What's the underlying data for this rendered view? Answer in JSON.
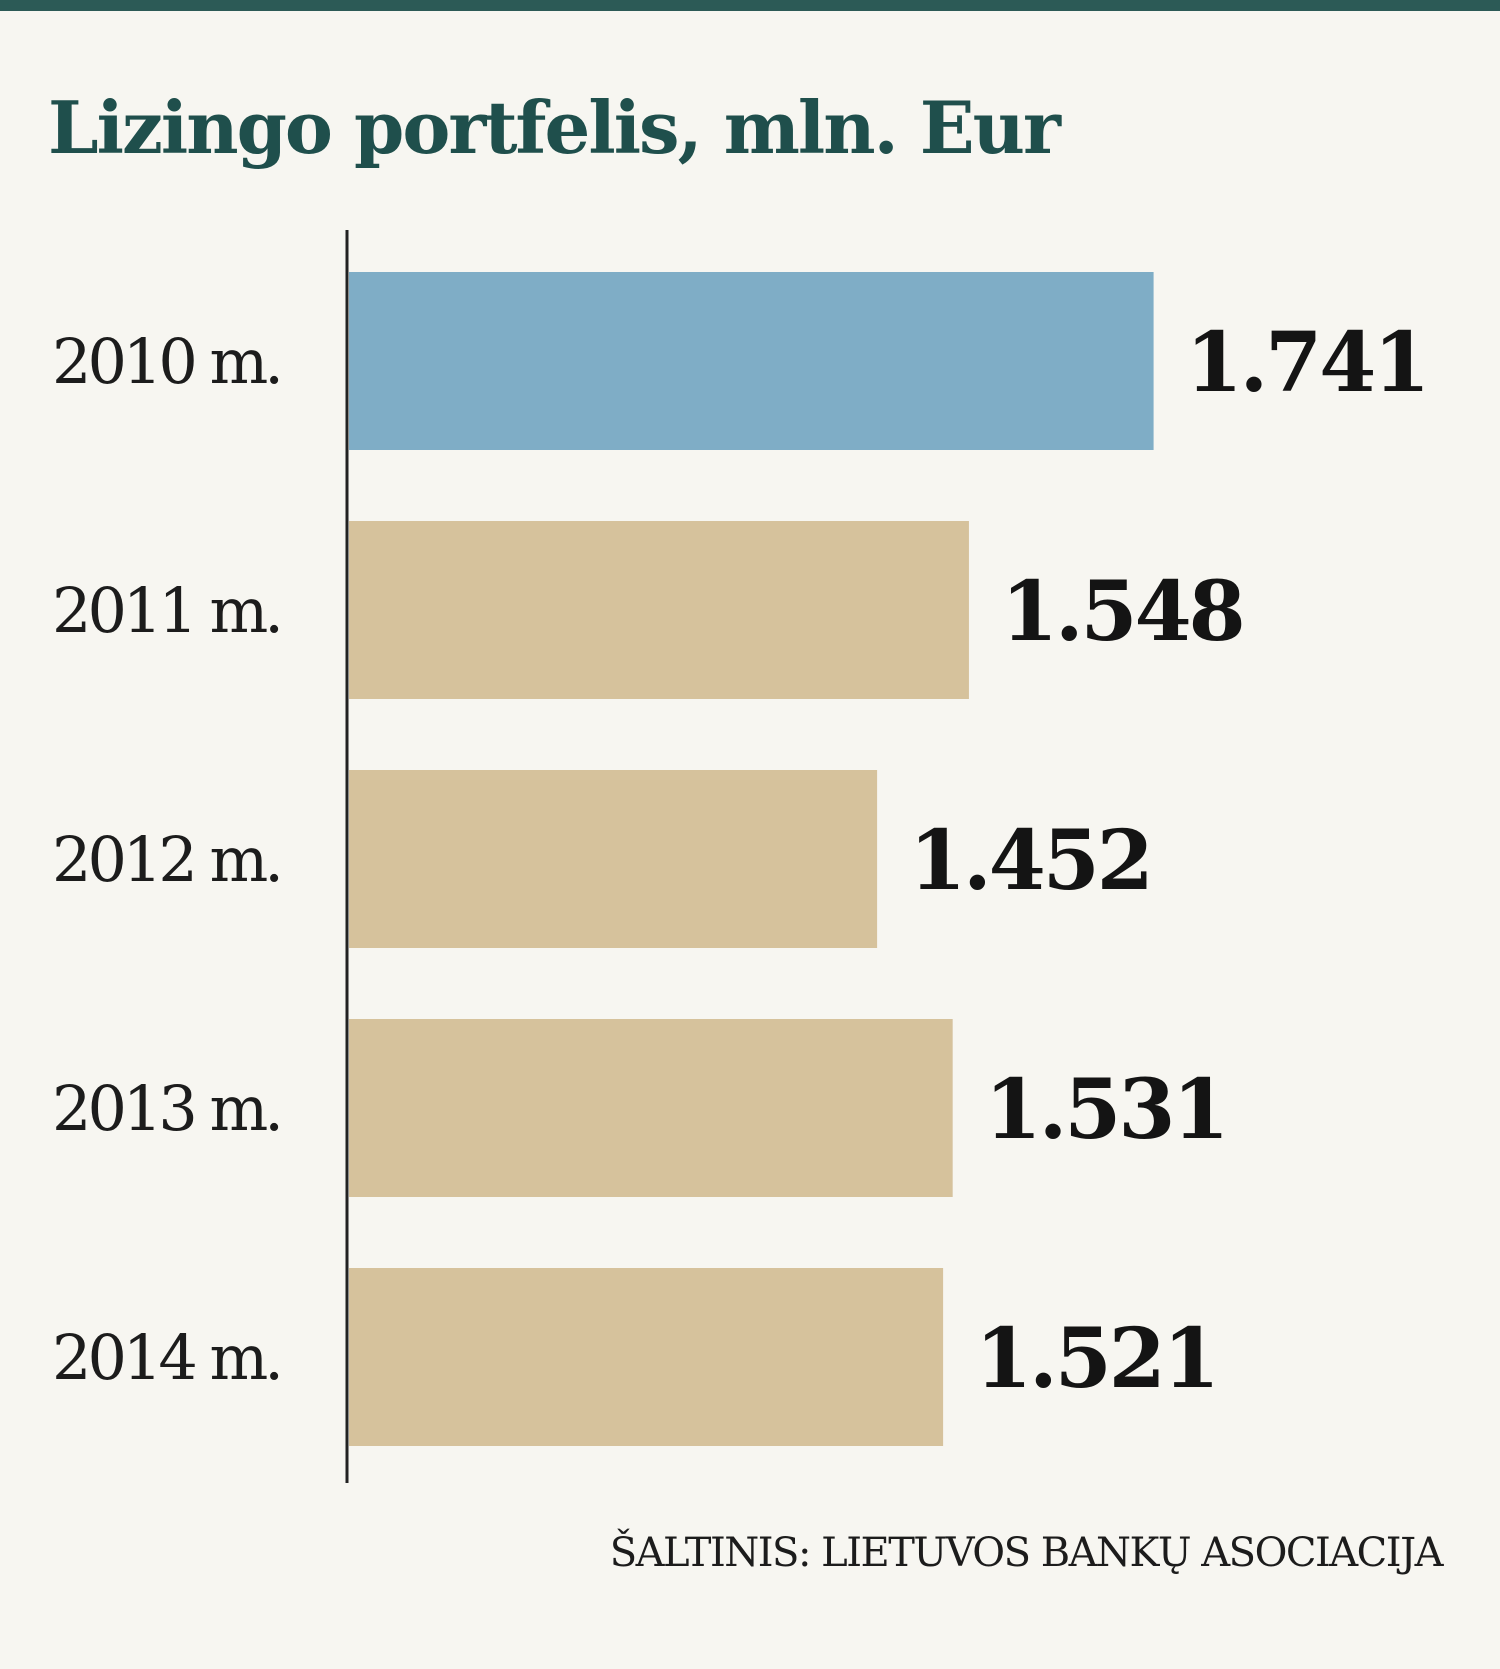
{
  "chart_data": {
    "type": "bar",
    "orientation": "horizontal",
    "title": "Lizingo portfelis, mln. Eur",
    "categories": [
      "2010 m.",
      "2011 m.",
      "2012 m.",
      "2013 m.",
      "2014 m."
    ],
    "values": [
      1741,
      1548,
      1452,
      1531,
      1521
    ],
    "value_labels": [
      "1.741",
      "1.548",
      "1.452",
      "1.531",
      "1.521"
    ],
    "colors": [
      "#7fadc6",
      "#d6c29c",
      "#d6c29c",
      "#d6c29c",
      "#d6c29c"
    ],
    "grid": false,
    "legend": "none",
    "source": "ŠALTINIS: LIETUVOS BANKŲ ASOCIACIJA"
  }
}
